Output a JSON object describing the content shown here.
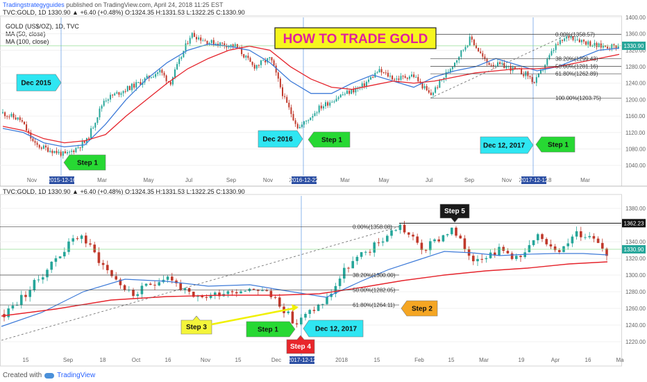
{
  "header": {
    "brand": "Tradingstrategyguides",
    "rest": " published on TradingView.com, April 24, 2018 11:25 EST",
    "ticker_line": "TVC:GOLD, 1D  1330.90  ▲ +6.40 (+0.48%)  O:1324.35  H:1331.53  L:1322.25  C:1330.90"
  },
  "top_legend": {
    "line1": "GOLD (US$/OZ), 1D, TVC",
    "line2": "MA (50, close)",
    "line3": "MA (100, close)"
  },
  "bottom_legend": {
    "line1": "TVC:GOLD, 1D  1330.90  ▲ +6.40 (+0.48%)  O:1324.35  H:1331.53  L:1322.25  C:1330.90"
  },
  "title_banner": "HOW TO TRADE GOLD",
  "colors": {
    "up": "#26a69a",
    "down": "#c0392b",
    "ma50": "#3d7ad8",
    "ma100": "#e5232b",
    "cyan": "#2fe6f2",
    "green": "#27d833",
    "orange": "#f5a623",
    "red": "#e8262b",
    "black": "#1a1a1a",
    "yellow": "#f0f000"
  },
  "footer": {
    "created": "Created with",
    "brand": "TradingView"
  },
  "chart_data": [
    {
      "type": "candlestick",
      "pane": "top",
      "ylim": [
        1020,
        1400
      ],
      "y_ticks": [
        "1400.00",
        "1360.00",
        "1320.00",
        "1280.00",
        "1240.00",
        "1200.00",
        "1160.00",
        "1120.00",
        "1080.00",
        "1040.00"
      ],
      "y_tick_values": [
        1400,
        1360,
        1320,
        1280,
        1240,
        1200,
        1160,
        1120,
        1080,
        1040
      ],
      "x_ticks": [
        "Nov",
        "2015-12-16",
        "Mar",
        "May",
        "Jul",
        "Sep",
        "Nov",
        "2016-12-22",
        "Mar",
        "May",
        "Jul",
        "Sep",
        "Nov",
        "2017-12-12",
        "18",
        "Mar"
      ],
      "last_price_label": "1330.90",
      "series": [
        {
          "name": "MA (50, close)",
          "values": [
            1130,
            1120,
            1095,
            1085,
            1090,
            1140,
            1200,
            1250,
            1290,
            1320,
            1335,
            1330,
            1320,
            1290,
            1245,
            1215,
            1215,
            1240,
            1260,
            1245,
            1230,
            1255,
            1270,
            1280,
            1300,
            1285,
            1270,
            1280,
            1300,
            1320,
            1325
          ]
        },
        {
          "name": "MA (100, close)",
          "values": [
            1135,
            1125,
            1105,
            1095,
            1100,
            1115,
            1160,
            1200,
            1240,
            1275,
            1300,
            1320,
            1330,
            1320,
            1280,
            1250,
            1230,
            1225,
            1235,
            1245,
            1240,
            1245,
            1255,
            1265,
            1270,
            1275,
            1275,
            1280,
            1290,
            1300,
            1310
          ]
        }
      ],
      "fib_levels": [
        {
          "label": "0.00%(1358.57)",
          "value": 1358.57
        },
        {
          "label": "38.20%(1299.43)",
          "value": 1299.43
        },
        {
          "label": "50.00%(1281.16)",
          "value": 1281.16
        },
        {
          "label": "61.80%(1262.89)",
          "value": 1262.89
        },
        {
          "label": "100.00%(1203.75)",
          "value": 1203.75
        }
      ],
      "annotations": [
        "Dec 2015",
        "Step 1",
        "Dec 2016",
        "Step 1",
        "Dec 12, 2017",
        "Step 1"
      ]
    },
    {
      "type": "candlestick",
      "pane": "bottom",
      "ylim": [
        1205,
        1395
      ],
      "y_ticks": [
        "1380.00",
        "1360.00",
        "1340.00",
        "1320.00",
        "1300.00",
        "1280.00",
        "1260.00",
        "1240.00",
        "1220.00"
      ],
      "y_tick_values": [
        1380,
        1360,
        1340,
        1320,
        1300,
        1280,
        1260,
        1240,
        1220
      ],
      "x_ticks": [
        "15",
        "Sep",
        "18",
        "Oct",
        "16",
        "Nov",
        "15",
        "Dec",
        "2017-12-12",
        "2018",
        "15",
        "Feb",
        "15",
        "Mar",
        "19",
        "Apr",
        "16",
        "Ma"
      ],
      "last_price_label": "1330.90",
      "resistance_label": "1362.23",
      "fib_levels": [
        {
          "label": "0.00%(1358.08)",
          "value": 1358.08
        },
        {
          "label": "38.20%(1300.00)",
          "value": 1300.0
        },
        {
          "label": "50.00%(1282.05)",
          "value": 1282.05
        },
        {
          "label": "61.80%(1264.11)",
          "value": 1264.11
        }
      ],
      "annotations": [
        "Step 5",
        "Step 2",
        "Step 3",
        "Step 1",
        "Dec 12, 2017",
        "Step 4"
      ]
    }
  ]
}
